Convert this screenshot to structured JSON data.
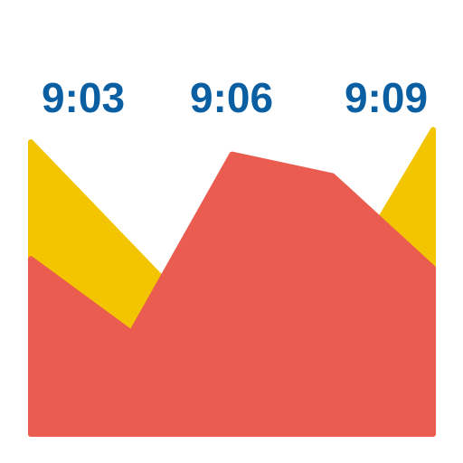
{
  "chart_data": {
    "type": "area",
    "title": "",
    "xlabel": "",
    "ylabel": "",
    "time_labels": [
      "9:03",
      "9:06",
      "9:09"
    ],
    "label_color": "#0a5fa3",
    "x": [
      0,
      1,
      2,
      3,
      4
    ],
    "xlim": [
      0,
      4
    ],
    "ylim": [
      0,
      100
    ],
    "series": [
      {
        "values": [
          95,
          61,
          27,
          44,
          99
        ],
        "color": "#f2c500"
      },
      {
        "values": [
          57,
          33,
          91,
          84,
          54
        ],
        "color": "#ea5c50"
      }
    ],
    "grid": false,
    "legend": false
  }
}
